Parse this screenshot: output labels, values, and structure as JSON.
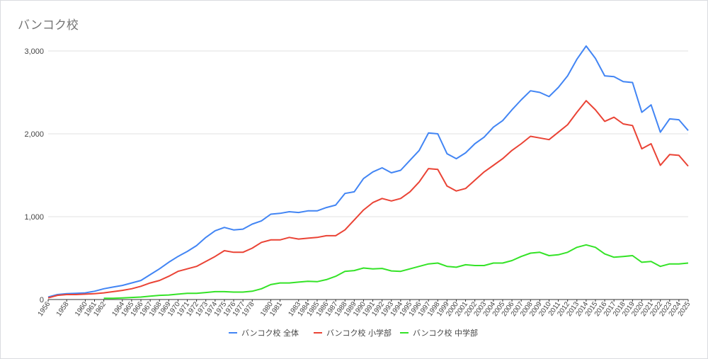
{
  "chart_data": {
    "type": "line",
    "title": "バンコク校",
    "xlabel": "",
    "ylabel": "",
    "ylim": [
      0,
      3000
    ],
    "yticks": [
      "0",
      "1,000",
      "2,000",
      "3,000"
    ],
    "grid": true,
    "legend_position": "bottom",
    "colors": [
      "#4285f4",
      "#ea4335",
      "#34e327"
    ],
    "x": [
      "1956",
      "1958",
      "1960",
      "1961",
      "1962",
      "1964",
      "1965",
      "1966",
      "1967",
      "1968",
      "1969",
      "1970",
      "1971",
      "1972",
      "1973",
      "1974",
      "1975",
      "1976",
      "1977",
      "1978",
      "1980",
      "1981",
      "1983",
      "1984",
      "1985",
      "1986",
      "1987",
      "1988",
      "1989",
      "1990",
      "1991",
      "1992",
      "1993",
      "1994",
      "1995",
      "1996",
      "1997",
      "1998",
      "1999",
      "2000",
      "2001",
      "2002",
      "2003",
      "2004",
      "2005",
      "2006",
      "2007",
      "2008",
      "2009",
      "2010",
      "2011",
      "2012",
      "2013",
      "2014",
      "2015",
      "2016",
      "2017",
      "2018",
      "2019",
      "2020",
      "2021",
      "2022",
      "2023",
      "2024",
      "2025"
    ],
    "series": [
      {
        "name": "バンコク校 全体",
        "points": [
          [
            1956,
            30
          ],
          [
            1957,
            60
          ],
          [
            1958,
            70
          ],
          [
            1959,
            75
          ],
          [
            1960,
            80
          ],
          [
            1961,
            100
          ],
          [
            1962,
            130
          ],
          [
            1963,
            150
          ],
          [
            1964,
            170
          ],
          [
            1965,
            200
          ],
          [
            1966,
            230
          ],
          [
            1967,
            300
          ],
          [
            1968,
            370
          ],
          [
            1969,
            450
          ],
          [
            1970,
            520
          ],
          [
            1971,
            580
          ],
          [
            1972,
            650
          ],
          [
            1973,
            750
          ],
          [
            1974,
            830
          ],
          [
            1975,
            870
          ],
          [
            1976,
            840
          ],
          [
            1977,
            850
          ],
          [
            1978,
            910
          ],
          [
            1979,
            950
          ],
          [
            1980,
            1030
          ],
          [
            1981,
            1040
          ],
          [
            1982,
            1060
          ],
          [
            1983,
            1050
          ],
          [
            1984,
            1070
          ],
          [
            1985,
            1070
          ],
          [
            1986,
            1110
          ],
          [
            1987,
            1140
          ],
          [
            1988,
            1280
          ],
          [
            1989,
            1300
          ],
          [
            1990,
            1460
          ],
          [
            1991,
            1540
          ],
          [
            1992,
            1590
          ],
          [
            1993,
            1530
          ],
          [
            1994,
            1560
          ],
          [
            1995,
            1680
          ],
          [
            1996,
            1800
          ],
          [
            1997,
            2010
          ],
          [
            1998,
            2000
          ],
          [
            1999,
            1760
          ],
          [
            2000,
            1700
          ],
          [
            2001,
            1770
          ],
          [
            2002,
            1880
          ],
          [
            2003,
            1960
          ],
          [
            2004,
            2080
          ],
          [
            2005,
            2160
          ],
          [
            2006,
            2290
          ],
          [
            2007,
            2410
          ],
          [
            2008,
            2520
          ],
          [
            2009,
            2500
          ],
          [
            2010,
            2450
          ],
          [
            2011,
            2560
          ],
          [
            2012,
            2700
          ],
          [
            2013,
            2900
          ],
          [
            2014,
            3060
          ],
          [
            2015,
            2910
          ],
          [
            2016,
            2700
          ],
          [
            2017,
            2690
          ],
          [
            2018,
            2630
          ],
          [
            2019,
            2620
          ],
          [
            2020,
            2260
          ],
          [
            2021,
            2350
          ],
          [
            2022,
            2020
          ],
          [
            2023,
            2180
          ],
          [
            2024,
            2170
          ],
          [
            2025,
            2040
          ]
        ]
      },
      {
        "name": "バンコク校 小学部",
        "points": [
          [
            1956,
            20
          ],
          [
            1957,
            50
          ],
          [
            1958,
            60
          ],
          [
            1959,
            60
          ],
          [
            1960,
            65
          ],
          [
            1961,
            70
          ],
          [
            1962,
            80
          ],
          [
            1963,
            95
          ],
          [
            1964,
            110
          ],
          [
            1965,
            130
          ],
          [
            1966,
            160
          ],
          [
            1967,
            200
          ],
          [
            1968,
            230
          ],
          [
            1969,
            280
          ],
          [
            1970,
            340
          ],
          [
            1971,
            370
          ],
          [
            1972,
            400
          ],
          [
            1973,
            460
          ],
          [
            1974,
            520
          ],
          [
            1975,
            590
          ],
          [
            1976,
            570
          ],
          [
            1977,
            570
          ],
          [
            1978,
            620
          ],
          [
            1979,
            690
          ],
          [
            1980,
            720
          ],
          [
            1981,
            720
          ],
          [
            1982,
            750
          ],
          [
            1983,
            730
          ],
          [
            1984,
            740
          ],
          [
            1985,
            750
          ],
          [
            1986,
            770
          ],
          [
            1987,
            770
          ],
          [
            1988,
            840
          ],
          [
            1989,
            960
          ],
          [
            1990,
            1080
          ],
          [
            1991,
            1170
          ],
          [
            1992,
            1220
          ],
          [
            1993,
            1190
          ],
          [
            1994,
            1220
          ],
          [
            1995,
            1300
          ],
          [
            1996,
            1420
          ],
          [
            1997,
            1580
          ],
          [
            1998,
            1570
          ],
          [
            1999,
            1370
          ],
          [
            2000,
            1310
          ],
          [
            2001,
            1340
          ],
          [
            2002,
            1440
          ],
          [
            2003,
            1540
          ],
          [
            2004,
            1620
          ],
          [
            2005,
            1700
          ],
          [
            2006,
            1800
          ],
          [
            2007,
            1880
          ],
          [
            2008,
            1970
          ],
          [
            2009,
            1950
          ],
          [
            2010,
            1930
          ],
          [
            2011,
            2020
          ],
          [
            2012,
            2110
          ],
          [
            2013,
            2260
          ],
          [
            2014,
            2400
          ],
          [
            2015,
            2290
          ],
          [
            2016,
            2150
          ],
          [
            2017,
            2200
          ],
          [
            2018,
            2120
          ],
          [
            2019,
            2100
          ],
          [
            2020,
            1820
          ],
          [
            2021,
            1880
          ],
          [
            2022,
            1620
          ],
          [
            2023,
            1750
          ],
          [
            2024,
            1740
          ],
          [
            2025,
            1610
          ]
        ]
      },
      {
        "name": "バンコク校 中学部",
        "points": [
          [
            1962,
            15
          ],
          [
            1963,
            15
          ],
          [
            1964,
            20
          ],
          [
            1965,
            25
          ],
          [
            1966,
            30
          ],
          [
            1967,
            40
          ],
          [
            1968,
            50
          ],
          [
            1969,
            55
          ],
          [
            1970,
            65
          ],
          [
            1971,
            75
          ],
          [
            1972,
            75
          ],
          [
            1973,
            85
          ],
          [
            1974,
            95
          ],
          [
            1975,
            95
          ],
          [
            1976,
            90
          ],
          [
            1977,
            90
          ],
          [
            1978,
            100
          ],
          [
            1979,
            130
          ],
          [
            1980,
            180
          ],
          [
            1981,
            200
          ],
          [
            1982,
            200
          ],
          [
            1983,
            210
          ],
          [
            1984,
            220
          ],
          [
            1985,
            215
          ],
          [
            1986,
            240
          ],
          [
            1987,
            280
          ],
          [
            1988,
            340
          ],
          [
            1989,
            350
          ],
          [
            1990,
            380
          ],
          [
            1991,
            370
          ],
          [
            1992,
            375
          ],
          [
            1993,
            345
          ],
          [
            1994,
            340
          ],
          [
            1995,
            370
          ],
          [
            1996,
            400
          ],
          [
            1997,
            430
          ],
          [
            1998,
            440
          ],
          [
            1999,
            400
          ],
          [
            2000,
            390
          ],
          [
            2001,
            420
          ],
          [
            2002,
            410
          ],
          [
            2003,
            410
          ],
          [
            2004,
            440
          ],
          [
            2005,
            440
          ],
          [
            2006,
            470
          ],
          [
            2007,
            520
          ],
          [
            2008,
            560
          ],
          [
            2009,
            570
          ],
          [
            2010,
            530
          ],
          [
            2011,
            540
          ],
          [
            2012,
            570
          ],
          [
            2013,
            630
          ],
          [
            2014,
            660
          ],
          [
            2015,
            630
          ],
          [
            2016,
            550
          ],
          [
            2017,
            510
          ],
          [
            2018,
            520
          ],
          [
            2019,
            530
          ],
          [
            2020,
            450
          ],
          [
            2021,
            460
          ],
          [
            2022,
            400
          ],
          [
            2023,
            430
          ],
          [
            2024,
            430
          ],
          [
            2025,
            440
          ]
        ]
      }
    ]
  }
}
